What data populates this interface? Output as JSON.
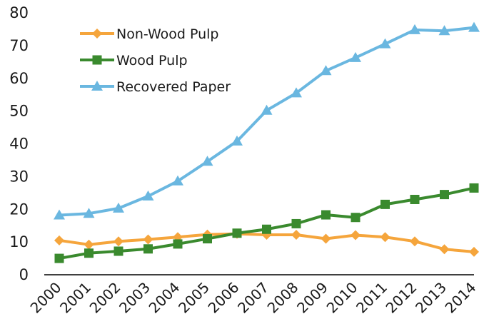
{
  "chart_data": {
    "type": "line",
    "title": "",
    "xlabel": "",
    "ylabel": "",
    "x": [
      "2000",
      "2001",
      "2002",
      "2003",
      "2004",
      "2005",
      "2006",
      "2007",
      "2008",
      "2009",
      "2010",
      "2011",
      "2012",
      "2013",
      "2014"
    ],
    "ylim": [
      0,
      80
    ],
    "yticks": [
      0,
      10,
      20,
      30,
      40,
      50,
      60,
      70,
      80
    ],
    "grid": false,
    "legend_position": "top-left",
    "series": [
      {
        "name": "Non-Wood Pulp",
        "color": "#f5a53c",
        "marker": "diamond",
        "values": [
          10.5,
          9.2,
          10.2,
          10.8,
          11.5,
          12.3,
          12.5,
          12.2,
          12.2,
          11.0,
          12.1,
          11.5,
          10.2,
          7.8,
          7.0
        ]
      },
      {
        "name": "Wood Pulp",
        "color": "#3a8a2e",
        "marker": "square",
        "values": [
          5.0,
          6.6,
          7.2,
          7.9,
          9.4,
          11.0,
          12.7,
          13.9,
          15.6,
          18.3,
          17.5,
          21.5,
          23.0,
          24.5,
          26.5
        ]
      },
      {
        "name": "Recovered Paper",
        "color": "#6ab7e0",
        "marker": "triangle",
        "values": [
          18.2,
          18.7,
          20.3,
          24.0,
          28.6,
          34.6,
          40.8,
          50.2,
          55.5,
          62.3,
          66.3,
          70.5,
          74.8,
          74.5,
          75.5
        ]
      }
    ]
  }
}
